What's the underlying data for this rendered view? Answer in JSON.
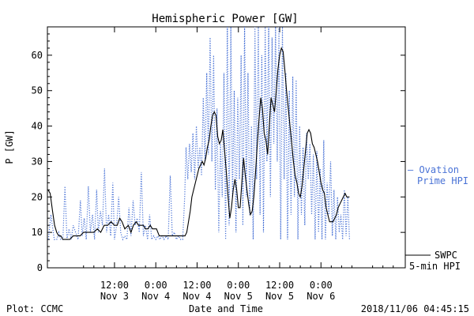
{
  "chart_data": {
    "type": "line",
    "title": "Hemispheric Power [GW]",
    "xlabel": "Date and Time",
    "ylabel": "P [GW]",
    "x_unit": "hours",
    "xlim": [
      -7.5,
      96.5
    ],
    "ylim": [
      0,
      68
    ],
    "grid": false,
    "legend_position": "right",
    "y_ticks": [
      0,
      10,
      20,
      30,
      40,
      50,
      60
    ],
    "x_ticks": [
      {
        "x": 12,
        "time": "12:00",
        "date": "Nov 3"
      },
      {
        "x": 24,
        "time": "0:00",
        "date": "Nov 4"
      },
      {
        "x": 36,
        "time": "12:00",
        "date": "Nov 4"
      },
      {
        "x": 48,
        "time": "0:00",
        "date": "Nov 5"
      },
      {
        "x": 60,
        "time": "12:00",
        "date": "Nov 5"
      },
      {
        "x": 72,
        "time": "0:00",
        "date": "Nov 6"
      }
    ],
    "series": [
      {
        "name": "Ovation Prime HPI",
        "legend_lines": [
          "— Ovation",
          "Prime HPI"
        ],
        "color": "#4a73d6",
        "style": "dotted",
        "points": [
          [
            -7.2,
            8
          ],
          [
            -6.5,
            15
          ],
          [
            -5.5,
            8
          ],
          [
            -4.8,
            8
          ],
          [
            -4.2,
            10
          ],
          [
            -3.6,
            8
          ],
          [
            -3,
            8
          ],
          [
            -2.4,
            23
          ],
          [
            -1.8,
            8
          ],
          [
            -1.2,
            11
          ],
          [
            -0.6,
            8
          ],
          [
            0,
            12
          ],
          [
            0.7,
            10
          ],
          [
            1.4,
            8
          ],
          [
            2.1,
            19
          ],
          [
            2.6,
            9
          ],
          [
            3.2,
            14
          ],
          [
            3.8,
            8
          ],
          [
            4.4,
            23
          ],
          [
            5,
            10
          ],
          [
            5.6,
            15
          ],
          [
            6.2,
            8
          ],
          [
            6.8,
            22
          ],
          [
            7.3,
            10
          ],
          [
            7.9,
            16
          ],
          [
            8.5,
            12
          ],
          [
            9.1,
            28
          ],
          [
            9.7,
            10
          ],
          [
            10.3,
            15
          ],
          [
            10.9,
            9
          ],
          [
            11.5,
            24
          ],
          [
            12,
            8
          ],
          [
            12.6,
            12
          ],
          [
            13.2,
            20
          ],
          [
            13.8,
            10
          ],
          [
            14.4,
            8
          ],
          [
            15,
            9
          ],
          [
            15.6,
            8
          ],
          [
            16.2,
            17
          ],
          [
            16.8,
            9
          ],
          [
            17.4,
            19
          ],
          [
            18,
            12
          ],
          [
            18.6,
            14
          ],
          [
            19.2,
            10
          ],
          [
            19.8,
            27
          ],
          [
            20.4,
            9
          ],
          [
            21,
            12
          ],
          [
            21.6,
            8
          ],
          [
            22.2,
            15
          ],
          [
            22.8,
            8
          ],
          [
            23.4,
            9
          ],
          [
            24,
            8
          ],
          [
            24.6,
            9
          ],
          [
            25.2,
            8
          ],
          [
            25.8,
            9
          ],
          [
            26.4,
            8
          ],
          [
            27,
            9
          ],
          [
            27.6,
            8
          ],
          [
            28.2,
            26
          ],
          [
            28.8,
            9
          ],
          [
            29.4,
            10
          ],
          [
            30,
            8
          ],
          [
            30.6,
            9
          ],
          [
            31.2,
            8
          ],
          [
            31.8,
            8
          ],
          [
            32.4,
            20
          ],
          [
            32.8,
            34
          ],
          [
            33.3,
            25
          ],
          [
            33.8,
            35
          ],
          [
            34.3,
            27
          ],
          [
            34.8,
            38
          ],
          [
            35.3,
            25
          ],
          [
            35.8,
            40
          ],
          [
            36.3,
            28
          ],
          [
            36.8,
            34
          ],
          [
            37.3,
            26
          ],
          [
            37.8,
            48
          ],
          [
            38.3,
            30
          ],
          [
            38.8,
            55
          ],
          [
            39.3,
            32
          ],
          [
            39.8,
            65
          ],
          [
            40.3,
            30
          ],
          [
            40.8,
            60
          ],
          [
            41.3,
            22
          ],
          [
            41.8,
            45
          ],
          [
            42.3,
            10
          ],
          [
            42.8,
            35
          ],
          [
            43.3,
            20
          ],
          [
            43.8,
            55
          ],
          [
            44.3,
            8
          ],
          [
            44.8,
            68
          ],
          [
            45.3,
            12
          ],
          [
            45.8,
            68
          ],
          [
            46.3,
            20
          ],
          [
            46.8,
            50
          ],
          [
            47.3,
            10
          ],
          [
            47.8,
            48
          ],
          [
            48.3,
            25
          ],
          [
            48.8,
            60
          ],
          [
            49.3,
            12
          ],
          [
            49.8,
            68
          ],
          [
            50.3,
            20
          ],
          [
            50.8,
            55
          ],
          [
            51.3,
            15
          ],
          [
            51.8,
            40
          ],
          [
            52.3,
            8
          ],
          [
            52.8,
            68
          ],
          [
            53.3,
            25
          ],
          [
            53.8,
            68
          ],
          [
            54.3,
            15
          ],
          [
            54.8,
            60
          ],
          [
            55.3,
            10
          ],
          [
            55.8,
            68
          ],
          [
            56.3,
            30
          ],
          [
            56.8,
            68
          ],
          [
            57.3,
            20
          ],
          [
            57.8,
            65
          ],
          [
            58.3,
            35
          ],
          [
            58.8,
            68
          ],
          [
            59.3,
            30
          ],
          [
            59.8,
            68
          ],
          [
            60.3,
            8
          ],
          [
            60.8,
            68
          ],
          [
            61.3,
            25
          ],
          [
            61.8,
            55
          ],
          [
            62.3,
            8
          ],
          [
            62.8,
            50
          ],
          [
            63.3,
            15
          ],
          [
            63.8,
            54
          ],
          [
            64.3,
            20
          ],
          [
            64.8,
            53
          ],
          [
            65.3,
            8
          ],
          [
            65.8,
            40
          ],
          [
            66.3,
            15
          ],
          [
            66.8,
            34
          ],
          [
            67.3,
            12
          ],
          [
            67.8,
            38
          ],
          [
            68.3,
            25
          ],
          [
            68.8,
            35
          ],
          [
            69.3,
            15
          ],
          [
            69.8,
            32
          ],
          [
            70.3,
            8
          ],
          [
            70.8,
            33
          ],
          [
            71.3,
            10
          ],
          [
            71.8,
            28
          ],
          [
            72.3,
            8
          ],
          [
            72.8,
            36
          ],
          [
            73.3,
            8
          ],
          [
            73.8,
            24
          ],
          [
            74.3,
            15
          ],
          [
            74.8,
            30
          ],
          [
            75.3,
            9
          ],
          [
            75.8,
            22
          ],
          [
            76.3,
            8
          ],
          [
            76.8,
            20
          ],
          [
            77.3,
            10
          ],
          [
            77.8,
            15
          ],
          [
            78.3,
            8
          ],
          [
            78.8,
            22
          ],
          [
            79.3,
            9
          ],
          [
            79.8,
            20
          ],
          [
            80.3,
            8
          ]
        ]
      },
      {
        "name": "SWPC 5-min HPI",
        "legend_lines": [
          "SWPC",
          "5-min HPI"
        ],
        "color": "#000000",
        "style": "solid",
        "points": [
          [
            -7.3,
            22
          ],
          [
            -6.7,
            21
          ],
          [
            -6,
            16
          ],
          [
            -5.4,
            12
          ],
          [
            -4.8,
            10
          ],
          [
            -4.2,
            9
          ],
          [
            -3.6,
            9
          ],
          [
            -3,
            8
          ],
          [
            -2,
            8
          ],
          [
            -1,
            8
          ],
          [
            0,
            9
          ],
          [
            2,
            9
          ],
          [
            3,
            10
          ],
          [
            4,
            10
          ],
          [
            5,
            10
          ],
          [
            6,
            10
          ],
          [
            7,
            11
          ],
          [
            8,
            10
          ],
          [
            9,
            12
          ],
          [
            10,
            12
          ],
          [
            11,
            13
          ],
          [
            12,
            12
          ],
          [
            12.8,
            12
          ],
          [
            13.5,
            14
          ],
          [
            14.2,
            13
          ],
          [
            15,
            11
          ],
          [
            16,
            12
          ],
          [
            16.8,
            10
          ],
          [
            17.5,
            12
          ],
          [
            18.3,
            13
          ],
          [
            19,
            12
          ],
          [
            19.7,
            12
          ],
          [
            20.4,
            12
          ],
          [
            21,
            11
          ],
          [
            21.7,
            11
          ],
          [
            22.4,
            12
          ],
          [
            23,
            11
          ],
          [
            23.6,
            11
          ],
          [
            24.2,
            11
          ],
          [
            25,
            9
          ],
          [
            26,
            9
          ],
          [
            27,
            9
          ],
          [
            28,
            9
          ],
          [
            29,
            9
          ],
          [
            30,
            9
          ],
          [
            31,
            9
          ],
          [
            32,
            9
          ],
          [
            32.5,
            9
          ],
          [
            33,
            10
          ],
          [
            33.5,
            13
          ],
          [
            34,
            16
          ],
          [
            34.5,
            20
          ],
          [
            35,
            22
          ],
          [
            35.5,
            24
          ],
          [
            36,
            26
          ],
          [
            36.5,
            28
          ],
          [
            37,
            29
          ],
          [
            37.5,
            30
          ],
          [
            38,
            29
          ],
          [
            38.5,
            31
          ],
          [
            39,
            34
          ],
          [
            39.5,
            36
          ],
          [
            40,
            40
          ],
          [
            40.5,
            43
          ],
          [
            41,
            44
          ],
          [
            41.5,
            43
          ],
          [
            42,
            37
          ],
          [
            42.5,
            35
          ],
          [
            43,
            36
          ],
          [
            43.5,
            39
          ],
          [
            44,
            33
          ],
          [
            44.5,
            27
          ],
          [
            45,
            20
          ],
          [
            45.5,
            14
          ],
          [
            46,
            17
          ],
          [
            46.5,
            22
          ],
          [
            47,
            25
          ],
          [
            47.5,
            22
          ],
          [
            48,
            17
          ],
          [
            48.5,
            17
          ],
          [
            49,
            24
          ],
          [
            49.5,
            31
          ],
          [
            50,
            26
          ],
          [
            50.5,
            22
          ],
          [
            51,
            18
          ],
          [
            51.5,
            15
          ],
          [
            52,
            16
          ],
          [
            52.5,
            20
          ],
          [
            53,
            27
          ],
          [
            53.5,
            35
          ],
          [
            54,
            42
          ],
          [
            54.5,
            48
          ],
          [
            55,
            45
          ],
          [
            55.5,
            38
          ],
          [
            56,
            36
          ],
          [
            56.5,
            32
          ],
          [
            57,
            40
          ],
          [
            57.5,
            48
          ],
          [
            58,
            46
          ],
          [
            58.5,
            44
          ],
          [
            59,
            50
          ],
          [
            59.5,
            56
          ],
          [
            60,
            60
          ],
          [
            60.5,
            62
          ],
          [
            61,
            61
          ],
          [
            61.5,
            56
          ],
          [
            62,
            50
          ],
          [
            62.5,
            45
          ],
          [
            63,
            40
          ],
          [
            63.5,
            35
          ],
          [
            64,
            30
          ],
          [
            64.5,
            26
          ],
          [
            65,
            24
          ],
          [
            65.5,
            21
          ],
          [
            66,
            20
          ],
          [
            66.5,
            23
          ],
          [
            67,
            28
          ],
          [
            67.5,
            33
          ],
          [
            68,
            38
          ],
          [
            68.5,
            39
          ],
          [
            69,
            38
          ],
          [
            69.5,
            35
          ],
          [
            70,
            34
          ],
          [
            70.5,
            32
          ],
          [
            71,
            30
          ],
          [
            71.5,
            27
          ],
          [
            72,
            24
          ],
          [
            72.5,
            22
          ],
          [
            73,
            21
          ],
          [
            73.5,
            17
          ],
          [
            74,
            15
          ],
          [
            74.5,
            13
          ],
          [
            75,
            13
          ],
          [
            75.5,
            13
          ],
          [
            76,
            14
          ],
          [
            76.5,
            15
          ],
          [
            77,
            17
          ],
          [
            77.5,
            18
          ],
          [
            78,
            19
          ],
          [
            78.5,
            20
          ],
          [
            79,
            21
          ],
          [
            79.5,
            20
          ],
          [
            80,
            20
          ],
          [
            80.3,
            20
          ]
        ]
      }
    ],
    "footer": {
      "plot_label": "Plot: CCMC",
      "timestamp": "2018/11/06 04:45:15"
    }
  }
}
